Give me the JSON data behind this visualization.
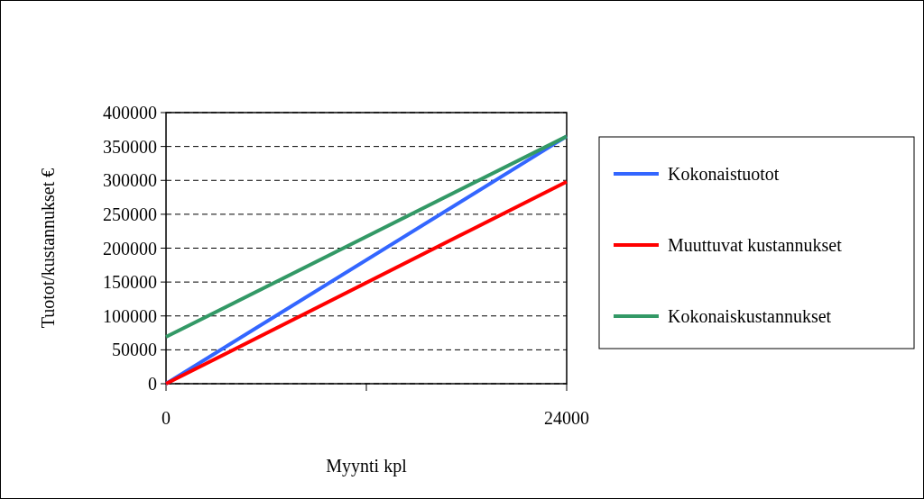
{
  "chart_data": {
    "type": "line",
    "xlabel": "Myynti kpl",
    "ylabel": "Tuotot/kustannukset €",
    "x": [
      0,
      24000
    ],
    "series": [
      {
        "name": "Kokonaistuotot",
        "color": "#3366ff",
        "values": [
          0,
          365000
        ]
      },
      {
        "name": "Muuttuvat kustannukset",
        "color": "#ff0000",
        "values": [
          0,
          298000
        ]
      },
      {
        "name": "Kokonaiskustannukset",
        "color": "#339966",
        "values": [
          69000,
          365000
        ]
      }
    ],
    "xlim": [
      0,
      24000
    ],
    "xticks": [
      0,
      {
        "value": 12000,
        "label": null
      },
      24000
    ],
    "ylim": [
      0,
      400000
    ],
    "yticks": [
      0,
      50000,
      100000,
      150000,
      200000,
      250000,
      300000,
      350000,
      400000
    ],
    "grid": "y",
    "legend": "right",
    "line_style": "solid"
  }
}
